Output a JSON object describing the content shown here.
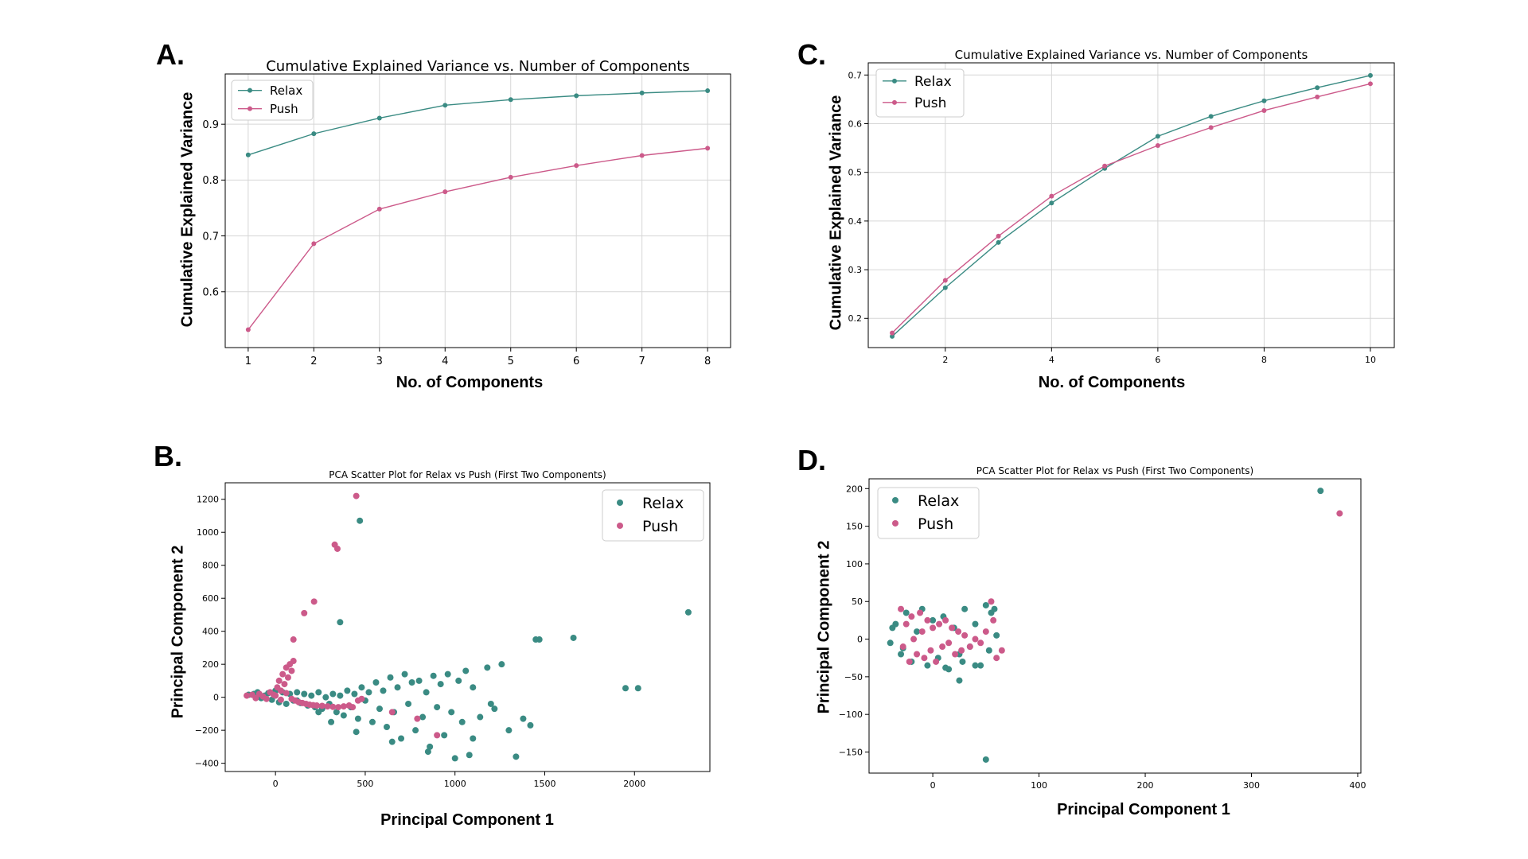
{
  "figure": {
    "panel_letters": [
      "A.",
      "B.",
      "C.",
      "D."
    ],
    "colors": {
      "relax": "#3a8b83",
      "push": "#cc5a8a",
      "grid": "#d6d6d6",
      "axis": "#000000"
    }
  },
  "chart_data": [
    {
      "id": "A",
      "type": "line",
      "title": "Cumulative Explained Variance vs. Number of Components",
      "xlabel": "No. of Components",
      "ylabel": "Cumulative Explained Variance",
      "xlim": [
        0.65,
        8.35
      ],
      "ylim": [
        0.5,
        0.99
      ],
      "xticks": [
        1,
        2,
        3,
        4,
        5,
        6,
        7,
        8
      ],
      "xtick_labels": [
        "1",
        "2",
        "3",
        "4",
        "5",
        "6",
        "7",
        "8"
      ],
      "yticks": [
        0.6,
        0.7,
        0.8,
        0.9
      ],
      "ytick_labels": [
        "0.6",
        "0.7",
        "0.8",
        "0.9"
      ],
      "grid": true,
      "legend": "upper-left",
      "series": [
        {
          "name": "Relax",
          "x": [
            1,
            2,
            3,
            4,
            5,
            6,
            7,
            8
          ],
          "y": [
            0.845,
            0.883,
            0.911,
            0.934,
            0.944,
            0.951,
            0.956,
            0.96
          ]
        },
        {
          "name": "Push",
          "x": [
            1,
            2,
            3,
            4,
            5,
            6,
            7,
            8
          ],
          "y": [
            0.532,
            0.686,
            0.748,
            0.779,
            0.805,
            0.826,
            0.844,
            0.857
          ]
        }
      ]
    },
    {
      "id": "B",
      "type": "scatter",
      "title": "PCA Scatter Plot for Relax vs Push (First Two Components)",
      "xlabel": "Principal Component 1",
      "ylabel": "Principal Component 2",
      "xlim": [
        -280,
        2420
      ],
      "ylim": [
        -450,
        1300
      ],
      "xticks": [
        0,
        500,
        1000,
        1500,
        2000
      ],
      "xtick_labels": [
        "0",
        "500",
        "1000",
        "1500",
        "2000"
      ],
      "yticks": [
        -400,
        -200,
        0,
        200,
        400,
        600,
        800,
        1000,
        1200
      ],
      "ytick_labels": [
        "−400",
        "−200",
        "0",
        "200",
        "400",
        "600",
        "800",
        "1000",
        "1200"
      ],
      "grid": false,
      "legend": "upper-right",
      "series": [
        {
          "name": "Relax",
          "points": [
            [
              -150,
              15
            ],
            [
              -120,
              20
            ],
            [
              -100,
              30
            ],
            [
              -80,
              -5
            ],
            [
              -60,
              10
            ],
            [
              -40,
              25
            ],
            [
              -20,
              -15
            ],
            [
              0,
              40
            ],
            [
              20,
              -30
            ],
            [
              40,
              30
            ],
            [
              60,
              -40
            ],
            [
              80,
              20
            ],
            [
              100,
              -20
            ],
            [
              120,
              30
            ],
            [
              140,
              -35
            ],
            [
              160,
              20
            ],
            [
              180,
              -50
            ],
            [
              200,
              10
            ],
            [
              220,
              -60
            ],
            [
              240,
              30
            ],
            [
              260,
              -70
            ],
            [
              280,
              0
            ],
            [
              300,
              -40
            ],
            [
              320,
              20
            ],
            [
              340,
              -90
            ],
            [
              360,
              10
            ],
            [
              380,
              -110
            ],
            [
              400,
              40
            ],
            [
              420,
              -60
            ],
            [
              440,
              20
            ],
            [
              460,
              -130
            ],
            [
              480,
              60
            ],
            [
              500,
              -20
            ],
            [
              520,
              30
            ],
            [
              540,
              -150
            ],
            [
              560,
              90
            ],
            [
              580,
              -70
            ],
            [
              600,
              40
            ],
            [
              620,
              -180
            ],
            [
              640,
              120
            ],
            [
              660,
              -90
            ],
            [
              680,
              60
            ],
            [
              700,
              -250
            ],
            [
              720,
              140
            ],
            [
              740,
              -40
            ],
            [
              760,
              90
            ],
            [
              780,
              -200
            ],
            [
              800,
              100
            ],
            [
              820,
              -120
            ],
            [
              840,
              30
            ],
            [
              860,
              -300
            ],
            [
              880,
              130
            ],
            [
              900,
              -60
            ],
            [
              920,
              80
            ],
            [
              940,
              -230
            ],
            [
              960,
              140
            ],
            [
              980,
              -90
            ],
            [
              1000,
              -370
            ],
            [
              1020,
              100
            ],
            [
              1040,
              -150
            ],
            [
              1060,
              160
            ],
            [
              1080,
              -350
            ],
            [
              1100,
              60
            ],
            [
              1140,
              -120
            ],
            [
              1180,
              180
            ],
            [
              1220,
              -70
            ],
            [
              1260,
              200
            ],
            [
              1300,
              -200
            ],
            [
              1340,
              -360
            ],
            [
              1380,
              -130
            ],
            [
              1420,
              -170
            ],
            [
              1450,
              350
            ],
            [
              1470,
              350
            ],
            [
              1660,
              360
            ],
            [
              1950,
              55
            ],
            [
              2020,
              55
            ],
            [
              2300,
              515
            ],
            [
              360,
              455
            ],
            [
              470,
              1070
            ],
            [
              120,
              -20
            ],
            [
              240,
              -90
            ],
            [
              310,
              -150
            ],
            [
              450,
              -210
            ],
            [
              650,
              -270
            ],
            [
              850,
              -330
            ],
            [
              1100,
              -250
            ],
            [
              1200,
              -40
            ]
          ]
        },
        {
          "name": "Push",
          "points": [
            [
              -160,
              10
            ],
            [
              -130,
              15
            ],
            [
              -110,
              -5
            ],
            [
              -90,
              20
            ],
            [
              -70,
              5
            ],
            [
              -50,
              -10
            ],
            [
              -30,
              30
            ],
            [
              -10,
              15
            ],
            [
              10,
              60
            ],
            [
              20,
              100
            ],
            [
              30,
              40
            ],
            [
              40,
              140
            ],
            [
              50,
              80
            ],
            [
              60,
              180
            ],
            [
              70,
              120
            ],
            [
              80,
              200
            ],
            [
              90,
              160
            ],
            [
              100,
              220
            ],
            [
              110,
              -20
            ],
            [
              130,
              -30
            ],
            [
              150,
              -35
            ],
            [
              170,
              -40
            ],
            [
              190,
              -45
            ],
            [
              210,
              -48
            ],
            [
              230,
              -50
            ],
            [
              260,
              -52
            ],
            [
              290,
              -55
            ],
            [
              320,
              -58
            ],
            [
              350,
              -60
            ],
            [
              380,
              -55
            ],
            [
              410,
              -50
            ],
            [
              430,
              -60
            ],
            [
              460,
              -20
            ],
            [
              480,
              -10
            ],
            [
              650,
              -90
            ],
            [
              790,
              -130
            ],
            [
              900,
              -230
            ],
            [
              100,
              350
            ],
            [
              160,
              510
            ],
            [
              215,
              580
            ],
            [
              330,
              925
            ],
            [
              345,
              900
            ],
            [
              450,
              1220
            ],
            [
              0,
              10
            ],
            [
              30,
              -15
            ],
            [
              60,
              25
            ],
            [
              90,
              -10
            ]
          ]
        }
      ]
    },
    {
      "id": "C",
      "type": "line",
      "title": "Cumulative Explained Variance vs. Number of Components",
      "xlabel": "No. of Components",
      "ylabel": "Cumulative Explained Variance",
      "xlim": [
        0.55,
        10.45
      ],
      "ylim": [
        0.14,
        0.725
      ],
      "xticks": [
        2,
        4,
        6,
        8,
        10
      ],
      "xtick_labels": [
        "2",
        "4",
        "6",
        "8",
        "10"
      ],
      "yticks": [
        0.2,
        0.3,
        0.4,
        0.5,
        0.6,
        0.7
      ],
      "ytick_labels": [
        "0.2",
        "0.3",
        "0.4",
        "0.5",
        "0.6",
        "0.7"
      ],
      "grid": true,
      "legend": "upper-left",
      "series": [
        {
          "name": "Relax",
          "x": [
            1,
            2,
            3,
            4,
            5,
            6,
            7,
            8,
            9,
            10
          ],
          "y": [
            0.163,
            0.263,
            0.356,
            0.437,
            0.508,
            0.574,
            0.615,
            0.647,
            0.674,
            0.699
          ]
        },
        {
          "name": "Push",
          "x": [
            1,
            2,
            3,
            4,
            5,
            6,
            7,
            8,
            9,
            10
          ],
          "y": [
            0.17,
            0.278,
            0.369,
            0.451,
            0.513,
            0.555,
            0.592,
            0.627,
            0.655,
            0.682
          ]
        }
      ]
    },
    {
      "id": "D",
      "type": "scatter",
      "title": "PCA Scatter Plot for Relax vs Push (First Two Components)",
      "xlabel": "Principal Component 1",
      "ylabel": "Principal Component 2",
      "xlim": [
        -60,
        403
      ],
      "ylim": [
        -178,
        213
      ],
      "xticks": [
        0,
        100,
        200,
        300,
        400
      ],
      "xtick_labels": [
        "0",
        "100",
        "200",
        "300",
        "400"
      ],
      "yticks": [
        -150,
        -100,
        -50,
        0,
        50,
        100,
        150,
        200
      ],
      "ytick_labels": [
        "−150",
        "−100",
        "−50",
        "0",
        "50",
        "100",
        "150",
        "200"
      ],
      "grid": false,
      "legend": "upper-left",
      "series": [
        {
          "name": "Relax",
          "points": [
            [
              -40,
              -5
            ],
            [
              -35,
              20
            ],
            [
              -30,
              -20
            ],
            [
              -25,
              35
            ],
            [
              -20,
              -30
            ],
            [
              -15,
              10
            ],
            [
              -10,
              40
            ],
            [
              -5,
              -35
            ],
            [
              0,
              25
            ],
            [
              5,
              -25
            ],
            [
              10,
              30
            ],
            [
              15,
              -40
            ],
            [
              20,
              15
            ],
            [
              25,
              -20
            ],
            [
              30,
              40
            ],
            [
              35,
              -10
            ],
            [
              40,
              20
            ],
            [
              45,
              -35
            ],
            [
              50,
              45
            ],
            [
              55,
              35
            ],
            [
              60,
              5
            ],
            [
              25,
              -55
            ],
            [
              50,
              -160
            ],
            [
              365,
              197
            ],
            [
              -38,
              15
            ],
            [
              -28,
              -12
            ],
            [
              12,
              -38
            ],
            [
              28,
              -30
            ],
            [
              40,
              -35
            ],
            [
              53,
              -15
            ],
            [
              58,
              40
            ]
          ]
        },
        {
          "name": "Push",
          "points": [
            [
              -30,
              40
            ],
            [
              -28,
              -10
            ],
            [
              -25,
              20
            ],
            [
              -22,
              -30
            ],
            [
              -20,
              30
            ],
            [
              -18,
              0
            ],
            [
              -15,
              -20
            ],
            [
              -12,
              35
            ],
            [
              -10,
              10
            ],
            [
              -8,
              -25
            ],
            [
              -5,
              25
            ],
            [
              -2,
              -15
            ],
            [
              0,
              15
            ],
            [
              3,
              -30
            ],
            [
              6,
              20
            ],
            [
              9,
              -10
            ],
            [
              12,
              25
            ],
            [
              15,
              -5
            ],
            [
              18,
              15
            ],
            [
              21,
              -20
            ],
            [
              24,
              10
            ],
            [
              27,
              -15
            ],
            [
              30,
              5
            ],
            [
              35,
              -10
            ],
            [
              40,
              0
            ],
            [
              45,
              -5
            ],
            [
              50,
              10
            ],
            [
              55,
              50
            ],
            [
              57,
              25
            ],
            [
              60,
              -25
            ],
            [
              65,
              -15
            ],
            [
              383,
              167
            ]
          ]
        }
      ]
    }
  ]
}
